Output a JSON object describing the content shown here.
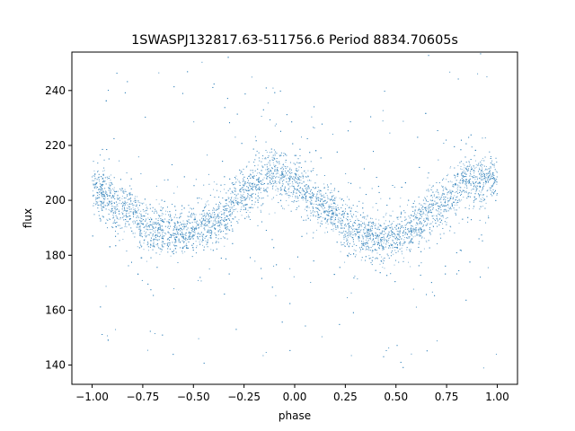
{
  "chart_data": {
    "type": "scatter",
    "title": "1SWASPJ132817.63-511756.6 Period 8834.70605s",
    "xlabel": "phase",
    "ylabel": "flux",
    "xlim": [
      -1.1,
      1.1
    ],
    "ylim": [
      133,
      254
    ],
    "xticks": [
      -1.0,
      -0.75,
      -0.5,
      -0.25,
      0.0,
      0.25,
      0.5,
      0.75,
      1.0
    ],
    "xtick_labels": [
      "−1.00",
      "−0.75",
      "−0.50",
      "−0.25",
      "0.00",
      "0.25",
      "0.50",
      "0.75",
      "1.00"
    ],
    "yticks": [
      140,
      160,
      180,
      200,
      220,
      240
    ],
    "ytick_labels": [
      "140",
      "160",
      "180",
      "200",
      "220",
      "240"
    ],
    "grid": false,
    "point_color": "#1f77b4",
    "series_trend": {
      "description_points_phase_flux": [
        [
          -1.0,
          205
        ],
        [
          -0.85,
          197
        ],
        [
          -0.7,
          190
        ],
        [
          -0.55,
          188
        ],
        [
          -0.4,
          192
        ],
        [
          -0.25,
          202
        ],
        [
          -0.12,
          210
        ],
        [
          0.0,
          206
        ],
        [
          0.15,
          197
        ],
        [
          0.3,
          189
        ],
        [
          0.45,
          186
        ],
        [
          0.55,
          188
        ],
        [
          0.7,
          197
        ],
        [
          0.85,
          207
        ],
        [
          1.0,
          208
        ]
      ],
      "band_half_width": 8,
      "outlier_range": [
        138,
        254
      ]
    }
  }
}
